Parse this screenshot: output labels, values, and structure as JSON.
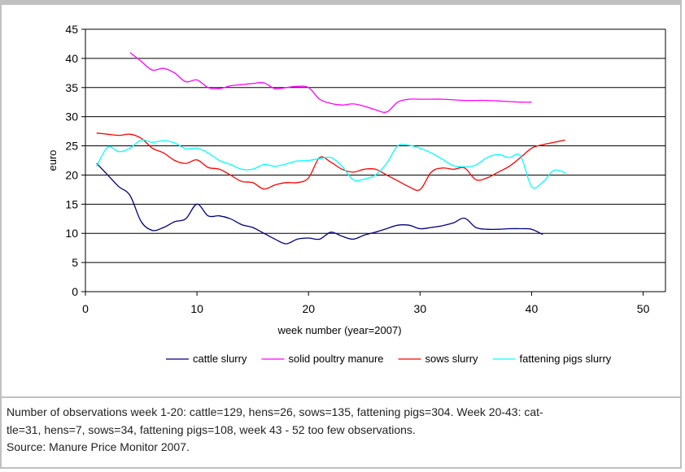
{
  "chart_data": {
    "type": "line",
    "xlabel": "week number (year=2007)",
    "ylabel": "euro",
    "xlim": [
      0,
      52
    ],
    "ylim": [
      0,
      45
    ],
    "xticks": [
      0,
      10,
      20,
      30,
      40,
      50
    ],
    "yticks": [
      0,
      5,
      10,
      15,
      20,
      25,
      30,
      35,
      40,
      45
    ],
    "grid": "horizontal",
    "legend": "bottom",
    "series": [
      {
        "name": "cattle slurry",
        "color": "#000080",
        "points": [
          [
            1,
            22
          ],
          [
            2,
            20
          ],
          [
            3,
            18
          ],
          [
            4,
            16.5
          ],
          [
            5,
            12
          ],
          [
            6,
            10.5
          ],
          [
            7,
            11
          ],
          [
            8,
            12
          ],
          [
            9,
            12.5
          ],
          [
            10,
            15
          ],
          [
            11,
            13
          ],
          [
            12,
            13
          ],
          [
            13,
            12.5
          ],
          [
            14,
            11.5
          ],
          [
            15,
            11
          ],
          [
            16,
            10
          ],
          [
            17,
            9
          ],
          [
            18,
            8.2
          ],
          [
            19,
            9
          ],
          [
            20,
            9.2
          ],
          [
            21,
            9
          ],
          [
            22,
            10.2
          ],
          [
            23,
            9.5
          ],
          [
            24,
            9
          ],
          [
            25,
            9.7
          ],
          [
            26,
            10.2
          ],
          [
            27,
            10.8
          ],
          [
            28,
            11.4
          ],
          [
            29,
            11.4
          ],
          [
            30,
            10.8
          ],
          [
            31,
            11
          ],
          [
            32,
            11.3
          ],
          [
            33,
            11.8
          ],
          [
            34,
            12.6
          ],
          [
            35,
            11
          ],
          [
            36,
            10.7
          ],
          [
            37,
            10.7
          ],
          [
            38,
            10.8
          ],
          [
            39,
            10.8
          ],
          [
            40,
            10.7
          ],
          [
            41,
            9.8
          ]
        ]
      },
      {
        "name": "solid poultry manure",
        "color": "#ff00ff",
        "points": [
          [
            4,
            41
          ],
          [
            5,
            39.5
          ],
          [
            6,
            38
          ],
          [
            7,
            38.3
          ],
          [
            8,
            37.5
          ],
          [
            9,
            36
          ],
          [
            10,
            36.3
          ],
          [
            11,
            35
          ],
          [
            12,
            34.8
          ],
          [
            13,
            35.3
          ],
          [
            14,
            35.5
          ],
          [
            15,
            35.7
          ],
          [
            16,
            35.8
          ],
          [
            17,
            34.8
          ],
          [
            18,
            35
          ],
          [
            19,
            35.2
          ],
          [
            20,
            35
          ],
          [
            21,
            33
          ],
          [
            22,
            32.3
          ],
          [
            23,
            32
          ],
          [
            24,
            32.2
          ],
          [
            25,
            31.8
          ],
          [
            26,
            31.2
          ],
          [
            27,
            30.8
          ],
          [
            28,
            32.5
          ],
          [
            29,
            33
          ],
          [
            30,
            33
          ],
          [
            31,
            33
          ],
          [
            32,
            33
          ],
          [
            33,
            32.9
          ],
          [
            34,
            32.8
          ],
          [
            35,
            32.8
          ],
          [
            36,
            32.8
          ],
          [
            37,
            32.7
          ],
          [
            38,
            32.6
          ],
          [
            39,
            32.5
          ],
          [
            40,
            32.5
          ]
        ]
      },
      {
        "name": "sows slurry",
        "color": "#ff0000",
        "points": [
          [
            1,
            27.2
          ],
          [
            2,
            27
          ],
          [
            3,
            26.8
          ],
          [
            4,
            27
          ],
          [
            5,
            26.3
          ],
          [
            6,
            24.6
          ],
          [
            7,
            23.8
          ],
          [
            8,
            22.5
          ],
          [
            9,
            22
          ],
          [
            10,
            22.6
          ],
          [
            11,
            21.3
          ],
          [
            12,
            21
          ],
          [
            13,
            20
          ],
          [
            14,
            18.9
          ],
          [
            15,
            18.7
          ],
          [
            16,
            17.6
          ],
          [
            17,
            18.3
          ],
          [
            18,
            18.7
          ],
          [
            19,
            18.7
          ],
          [
            20,
            19.5
          ],
          [
            21,
            23
          ],
          [
            22,
            22.2
          ],
          [
            23,
            21
          ],
          [
            24,
            20.5
          ],
          [
            25,
            21
          ],
          [
            26,
            21
          ],
          [
            27,
            20
          ],
          [
            28,
            19
          ],
          [
            29,
            18
          ],
          [
            30,
            17.5
          ],
          [
            31,
            20.5
          ],
          [
            32,
            21.2
          ],
          [
            33,
            21
          ],
          [
            34,
            21.2
          ],
          [
            35,
            19.2
          ],
          [
            36,
            19.5
          ],
          [
            37,
            20.5
          ],
          [
            38,
            21.5
          ],
          [
            39,
            23
          ],
          [
            40,
            24.6
          ],
          [
            41,
            25.2
          ],
          [
            42,
            25.6
          ],
          [
            43,
            26
          ]
        ]
      },
      {
        "name": "fattening pigs slurry",
        "color": "#00ffff",
        "points": [
          [
            1,
            21.5
          ],
          [
            2,
            24.8
          ],
          [
            3,
            24
          ],
          [
            4,
            24.6
          ],
          [
            5,
            26
          ],
          [
            6,
            25.6
          ],
          [
            7,
            25.9
          ],
          [
            8,
            25.5
          ],
          [
            9,
            24.5
          ],
          [
            10,
            24.6
          ],
          [
            11,
            23.8
          ],
          [
            12,
            22.5
          ],
          [
            13,
            21.8
          ],
          [
            14,
            21
          ],
          [
            15,
            21
          ],
          [
            16,
            21.8
          ],
          [
            17,
            21.5
          ],
          [
            18,
            21.9
          ],
          [
            19,
            22.4
          ],
          [
            20,
            22.5
          ],
          [
            21,
            22.8
          ],
          [
            22,
            23
          ],
          [
            23,
            21.5
          ],
          [
            24,
            19.2
          ],
          [
            25,
            19.3
          ],
          [
            26,
            20
          ],
          [
            27,
            22
          ],
          [
            28,
            25
          ],
          [
            29,
            25.1
          ],
          [
            30,
            24.6
          ],
          [
            31,
            23.8
          ],
          [
            32,
            22.7
          ],
          [
            33,
            21.6
          ],
          [
            34,
            21.4
          ],
          [
            35,
            21.7
          ],
          [
            36,
            23
          ],
          [
            37,
            23.5
          ],
          [
            38,
            23
          ],
          [
            39,
            23.3
          ],
          [
            40,
            18
          ],
          [
            41,
            18.8
          ],
          [
            42,
            20.8
          ],
          [
            43,
            20.4
          ]
        ]
      }
    ]
  },
  "note": {
    "line1": "Number of observations week 1-20: cattle=129, hens=26, sows=135, fattening pigs=304. Week 20-43: cat-",
    "line2": "tle=31, hens=7, sows=34, fattening pigs=108, week 43 - 52 too few observations.",
    "line3": "Source: Manure Price Monitor 2007."
  }
}
